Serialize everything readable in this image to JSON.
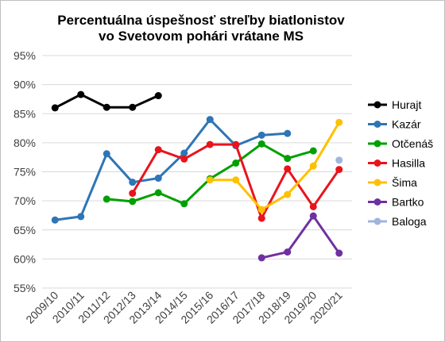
{
  "chart_data": {
    "type": "line",
    "title_lines": [
      "Percentuálna  úspešnosť streľby biatlonistov",
      "vo Svetovom pohári vrátane MS"
    ],
    "categories": [
      "2009/10",
      "2010/11",
      "2011/12",
      "2012/13",
      "2013/14",
      "2014/15",
      "2015/16",
      "2016/17",
      "2017/18",
      "2018/19",
      "2019/20",
      "2020/21"
    ],
    "y_ticks": [
      "95%",
      "90%",
      "85%",
      "80%",
      "75%",
      "70%",
      "65%",
      "60%",
      "55%"
    ],
    "ylim": [
      55,
      95
    ],
    "grid": "horizontal",
    "legend_position": "right",
    "series": [
      {
        "name": "Hurajt",
        "color": "#000000",
        "values": [
          86.0,
          88.3,
          86.1,
          86.1,
          88.1,
          null,
          null,
          null,
          null,
          null,
          null,
          null
        ]
      },
      {
        "name": "Kazár",
        "color": "#2e75b6",
        "values": [
          66.7,
          67.3,
          78.1,
          73.2,
          73.9,
          78.2,
          84.0,
          79.5,
          81.3,
          81.6,
          null,
          null
        ]
      },
      {
        "name": "Otčenáš",
        "color": "#00a000",
        "values": [
          null,
          null,
          70.3,
          69.9,
          71.4,
          69.5,
          73.8,
          76.5,
          79.8,
          77.3,
          78.6,
          null
        ]
      },
      {
        "name": "Hasilla",
        "color": "#e8141c",
        "values": [
          null,
          null,
          null,
          71.3,
          78.8,
          77.2,
          79.7,
          79.7,
          67.0,
          75.5,
          69.0,
          75.4
        ]
      },
      {
        "name": "Šima",
        "color": "#ffc000",
        "values": [
          null,
          null,
          null,
          null,
          null,
          null,
          73.6,
          73.6,
          68.5,
          71.1,
          76.0,
          83.5
        ]
      },
      {
        "name": "Bartko",
        "color": "#7030a0",
        "values": [
          null,
          null,
          null,
          null,
          null,
          null,
          null,
          null,
          60.2,
          61.2,
          67.4,
          61.0
        ]
      },
      {
        "name": "Baloga",
        "color": "#a0b4dc",
        "values": [
          null,
          null,
          null,
          null,
          null,
          null,
          null,
          null,
          null,
          null,
          null,
          77.0
        ]
      }
    ]
  }
}
